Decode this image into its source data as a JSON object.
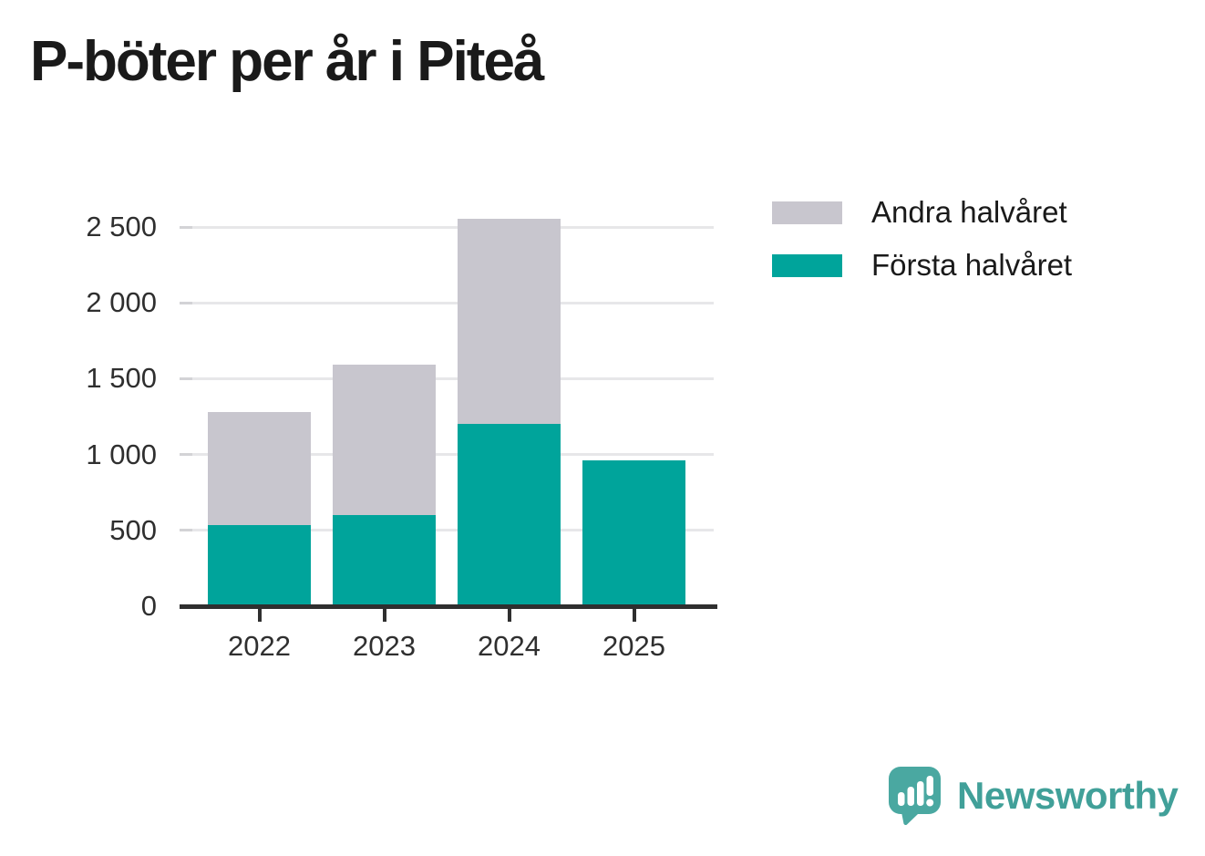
{
  "title": "P-böter per år i Piteå",
  "colors": {
    "first_half": "#00a49b",
    "second_half": "#c8c6ce",
    "axis": "#2f2f2f",
    "gridline": "#e7e7e9",
    "tick_dash": "#d3d3d6",
    "label_text": "#2f2f2f",
    "title_text": "#1a1a1a",
    "logo_teal": "#41a099",
    "logo_bubble": "#4aa8a1",
    "logo_glyph": "#ffffff"
  },
  "chart_data": {
    "type": "bar",
    "stacked": true,
    "title": "P-böter per år i Piteå",
    "categories": [
      "2022",
      "2023",
      "2024",
      "2025"
    ],
    "series": [
      {
        "name": "Första halvåret",
        "color_key": "first_half",
        "values": [
          535,
          600,
          1200,
          960
        ]
      },
      {
        "name": "Andra halvåret",
        "color_key": "second_half",
        "values": [
          745,
          995,
          1355,
          0
        ]
      }
    ],
    "stack_totals": [
      1280,
      1595,
      2555,
      960
    ],
    "xlabel": "",
    "ylabel": "",
    "ylim": [
      0,
      2650
    ],
    "yticks": [
      0,
      500,
      1000,
      1500,
      2000,
      2500
    ],
    "ytick_labels": [
      "0",
      "500",
      "1 000",
      "1 500",
      "2 000",
      "2 500"
    ],
    "grid": true,
    "legend_position": "top-right"
  },
  "legend": {
    "items": [
      {
        "label": "Andra halvåret",
        "color_key": "second_half"
      },
      {
        "label": "Första halvåret",
        "color_key": "first_half"
      }
    ]
  },
  "branding": {
    "name": "Newsworthy"
  }
}
